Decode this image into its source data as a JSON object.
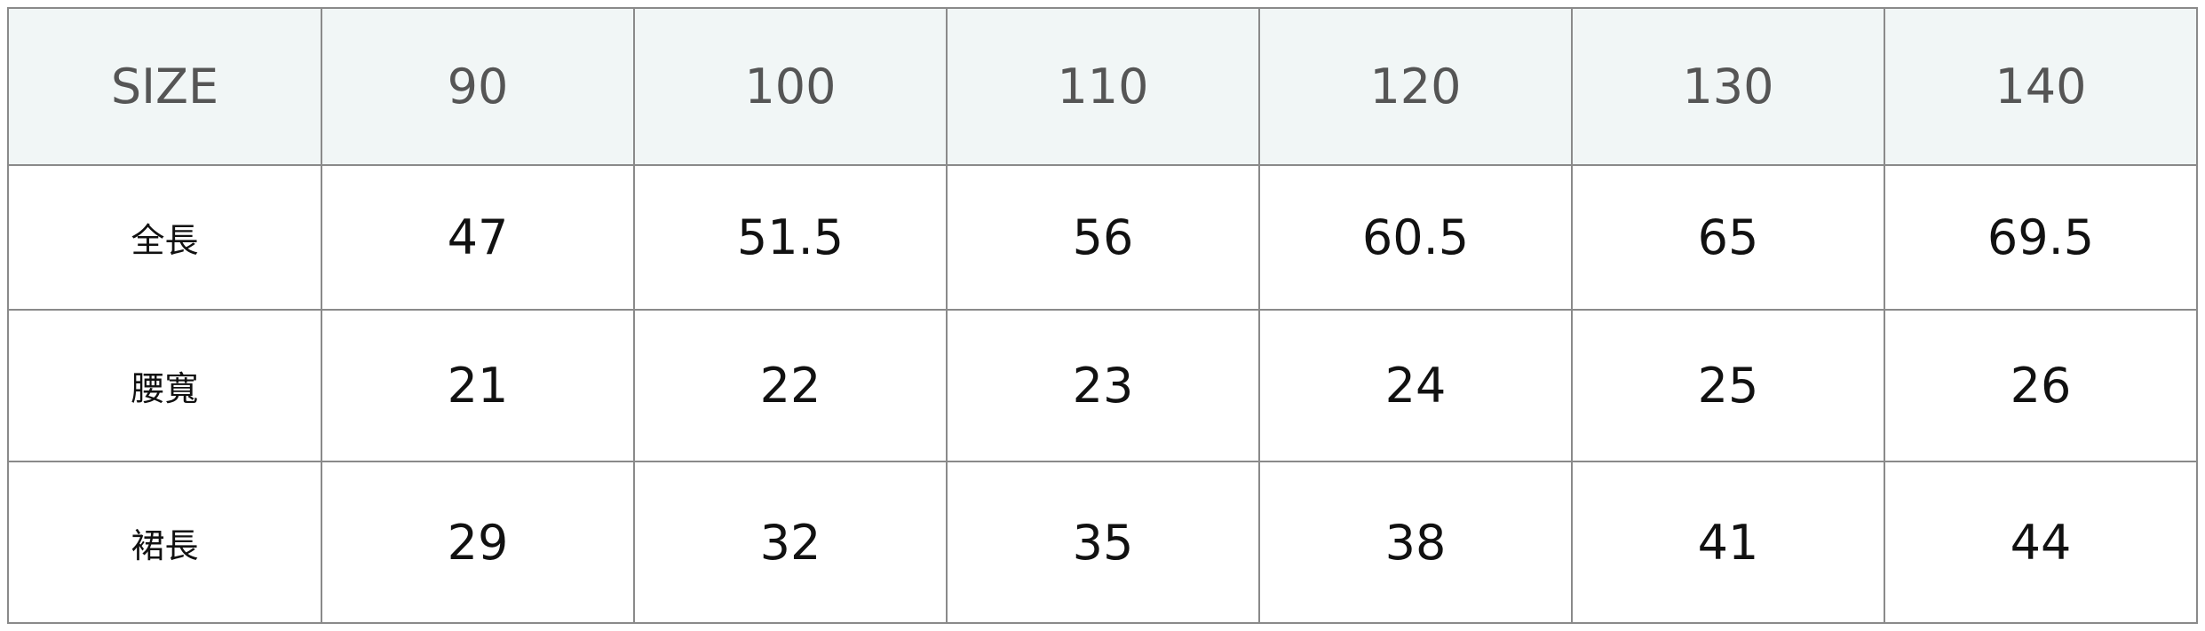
{
  "header": [
    "SIZE",
    "90",
    "100",
    "110",
    "120",
    "130",
    "140"
  ],
  "rows": [
    {
      "label": "全長",
      "values": [
        "47",
        "51.5",
        "56",
        "60.5",
        "65",
        "69.5"
      ]
    },
    {
      "label": "腰寬",
      "values": [
        "21",
        "22",
        "23",
        "24",
        "25",
        "26"
      ]
    },
    {
      "label": "裙長",
      "values": [
        "29",
        "32",
        "35",
        "38",
        "41",
        "44"
      ]
    }
  ],
  "colors": {
    "header_bg": "#f1f6f6",
    "border": "#8a8a8a",
    "header_text": "#555555"
  }
}
